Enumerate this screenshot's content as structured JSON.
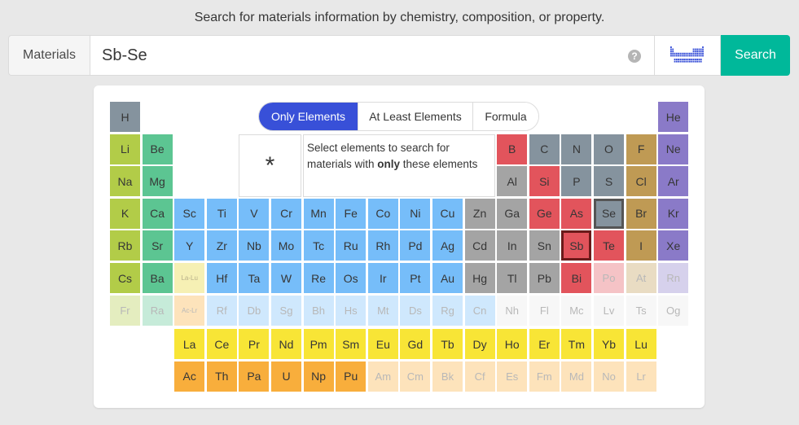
{
  "header": {
    "tagline": "Search for materials information by chemistry, composition, or property."
  },
  "search": {
    "label": "Materials",
    "value": "Sb-Se",
    "help_icon": "question-circle-icon",
    "toggle_icon": "periodic-table-icon",
    "button_label": "Search",
    "button_color": "#00b89a"
  },
  "modes": [
    "Only Elements",
    "At Least Elements",
    "Formula"
  ],
  "active_mode": "Only Elements",
  "wildcard": "*",
  "hint": {
    "before": "Select elements to search for materials with ",
    "bold": "only",
    "after": " these elements"
  },
  "selected_elements": [
    "Sb",
    "Se"
  ],
  "colors": {
    "alkali": "#b2cc48",
    "alkaline": "#5cc592",
    "transition": "#76bdf9",
    "post_transition": "#a4a4a4",
    "metalloid": "#e2545c",
    "nonmetal": "#85939e",
    "halogen": "#bf9a54",
    "noble": "#8a7ac8",
    "lanthanide": "#f8e536",
    "actinide": "#f8ae3c",
    "placeholder_lanthanide": "#f6f0b4"
  },
  "elements": [
    {
      "s": "H",
      "r": 1,
      "c": 1,
      "g": "nonmetal"
    },
    {
      "s": "He",
      "r": 1,
      "c": 18,
      "g": "noble"
    },
    {
      "s": "Li",
      "r": 2,
      "c": 1,
      "g": "alkali"
    },
    {
      "s": "Be",
      "r": 2,
      "c": 2,
      "g": "alkaline"
    },
    {
      "s": "B",
      "r": 2,
      "c": 13,
      "g": "metalloid"
    },
    {
      "s": "C",
      "r": 2,
      "c": 14,
      "g": "nonmetal"
    },
    {
      "s": "N",
      "r": 2,
      "c": 15,
      "g": "nonmetal"
    },
    {
      "s": "O",
      "r": 2,
      "c": 16,
      "g": "nonmetal"
    },
    {
      "s": "F",
      "r": 2,
      "c": 17,
      "g": "halogen"
    },
    {
      "s": "Ne",
      "r": 2,
      "c": 18,
      "g": "noble"
    },
    {
      "s": "Na",
      "r": 3,
      "c": 1,
      "g": "alkali"
    },
    {
      "s": "Mg",
      "r": 3,
      "c": 2,
      "g": "alkaline"
    },
    {
      "s": "Al",
      "r": 3,
      "c": 13,
      "g": "post_transition"
    },
    {
      "s": "Si",
      "r": 3,
      "c": 14,
      "g": "metalloid"
    },
    {
      "s": "P",
      "r": 3,
      "c": 15,
      "g": "nonmetal"
    },
    {
      "s": "S",
      "r": 3,
      "c": 16,
      "g": "nonmetal"
    },
    {
      "s": "Cl",
      "r": 3,
      "c": 17,
      "g": "halogen"
    },
    {
      "s": "Ar",
      "r": 3,
      "c": 18,
      "g": "noble"
    },
    {
      "s": "K",
      "r": 4,
      "c": 1,
      "g": "alkali"
    },
    {
      "s": "Ca",
      "r": 4,
      "c": 2,
      "g": "alkaline"
    },
    {
      "s": "Sc",
      "r": 4,
      "c": 3,
      "g": "transition"
    },
    {
      "s": "Ti",
      "r": 4,
      "c": 4,
      "g": "transition"
    },
    {
      "s": "V",
      "r": 4,
      "c": 5,
      "g": "transition"
    },
    {
      "s": "Cr",
      "r": 4,
      "c": 6,
      "g": "transition"
    },
    {
      "s": "Mn",
      "r": 4,
      "c": 7,
      "g": "transition"
    },
    {
      "s": "Fe",
      "r": 4,
      "c": 8,
      "g": "transition"
    },
    {
      "s": "Co",
      "r": 4,
      "c": 9,
      "g": "transition"
    },
    {
      "s": "Ni",
      "r": 4,
      "c": 10,
      "g": "transition"
    },
    {
      "s": "Cu",
      "r": 4,
      "c": 11,
      "g": "transition"
    },
    {
      "s": "Zn",
      "r": 4,
      "c": 12,
      "g": "post_transition"
    },
    {
      "s": "Ga",
      "r": 4,
      "c": 13,
      "g": "post_transition"
    },
    {
      "s": "Ge",
      "r": 4,
      "c": 14,
      "g": "metalloid"
    },
    {
      "s": "As",
      "r": 4,
      "c": 15,
      "g": "metalloid"
    },
    {
      "s": "Se",
      "r": 4,
      "c": 16,
      "g": "nonmetal"
    },
    {
      "s": "Br",
      "r": 4,
      "c": 17,
      "g": "halogen"
    },
    {
      "s": "Kr",
      "r": 4,
      "c": 18,
      "g": "noble"
    },
    {
      "s": "Rb",
      "r": 5,
      "c": 1,
      "g": "alkali"
    },
    {
      "s": "Sr",
      "r": 5,
      "c": 2,
      "g": "alkaline"
    },
    {
      "s": "Y",
      "r": 5,
      "c": 3,
      "g": "transition"
    },
    {
      "s": "Zr",
      "r": 5,
      "c": 4,
      "g": "transition"
    },
    {
      "s": "Nb",
      "r": 5,
      "c": 5,
      "g": "transition"
    },
    {
      "s": "Mo",
      "r": 5,
      "c": 6,
      "g": "transition"
    },
    {
      "s": "Tc",
      "r": 5,
      "c": 7,
      "g": "transition"
    },
    {
      "s": "Ru",
      "r": 5,
      "c": 8,
      "g": "transition"
    },
    {
      "s": "Rh",
      "r": 5,
      "c": 9,
      "g": "transition"
    },
    {
      "s": "Pd",
      "r": 5,
      "c": 10,
      "g": "transition"
    },
    {
      "s": "Ag",
      "r": 5,
      "c": 11,
      "g": "transition"
    },
    {
      "s": "Cd",
      "r": 5,
      "c": 12,
      "g": "post_transition"
    },
    {
      "s": "In",
      "r": 5,
      "c": 13,
      "g": "post_transition"
    },
    {
      "s": "Sn",
      "r": 5,
      "c": 14,
      "g": "post_transition"
    },
    {
      "s": "Sb",
      "r": 5,
      "c": 15,
      "g": "metalloid"
    },
    {
      "s": "Te",
      "r": 5,
      "c": 16,
      "g": "metalloid"
    },
    {
      "s": "I",
      "r": 5,
      "c": 17,
      "g": "halogen"
    },
    {
      "s": "Xe",
      "r": 5,
      "c": 18,
      "g": "noble"
    },
    {
      "s": "Cs",
      "r": 6,
      "c": 1,
      "g": "alkali"
    },
    {
      "s": "Ba",
      "r": 6,
      "c": 2,
      "g": "alkaline"
    },
    {
      "s": "La-Lu",
      "r": 6,
      "c": 3,
      "g": "placeholder_lanthanide",
      "tiny": true
    },
    {
      "s": "Hf",
      "r": 6,
      "c": 4,
      "g": "transition"
    },
    {
      "s": "Ta",
      "r": 6,
      "c": 5,
      "g": "transition"
    },
    {
      "s": "W",
      "r": 6,
      "c": 6,
      "g": "transition"
    },
    {
      "s": "Re",
      "r": 6,
      "c": 7,
      "g": "transition"
    },
    {
      "s": "Os",
      "r": 6,
      "c": 8,
      "g": "transition"
    },
    {
      "s": "Ir",
      "r": 6,
      "c": 9,
      "g": "transition"
    },
    {
      "s": "Pt",
      "r": 6,
      "c": 10,
      "g": "transition"
    },
    {
      "s": "Au",
      "r": 6,
      "c": 11,
      "g": "transition"
    },
    {
      "s": "Hg",
      "r": 6,
      "c": 12,
      "g": "post_transition"
    },
    {
      "s": "Tl",
      "r": 6,
      "c": 13,
      "g": "post_transition"
    },
    {
      "s": "Pb",
      "r": 6,
      "c": 14,
      "g": "post_transition"
    },
    {
      "s": "Bi",
      "r": 6,
      "c": 15,
      "g": "metalloid"
    },
    {
      "s": "Po",
      "r": 6,
      "c": 16,
      "g": "metalloid",
      "faded": true
    },
    {
      "s": "At",
      "r": 6,
      "c": 17,
      "g": "halogen",
      "faded": true
    },
    {
      "s": "Rn",
      "r": 6,
      "c": 18,
      "g": "noble",
      "faded": true
    },
    {
      "s": "Fr",
      "r": 7,
      "c": 1,
      "g": "alkali",
      "faded": true
    },
    {
      "s": "Ra",
      "r": 7,
      "c": 2,
      "g": "alkaline",
      "faded": true
    },
    {
      "s": "Ac-Lr",
      "r": 7,
      "c": 3,
      "g": "actinide",
      "faded": true,
      "tiny": true
    },
    {
      "s": "Rf",
      "r": 7,
      "c": 4,
      "g": "transition",
      "faded": true
    },
    {
      "s": "Db",
      "r": 7,
      "c": 5,
      "g": "transition",
      "faded": true
    },
    {
      "s": "Sg",
      "r": 7,
      "c": 6,
      "g": "transition",
      "faded": true
    },
    {
      "s": "Bh",
      "r": 7,
      "c": 7,
      "g": "transition",
      "faded": true
    },
    {
      "s": "Hs",
      "r": 7,
      "c": 8,
      "g": "transition",
      "faded": true
    },
    {
      "s": "Mt",
      "r": 7,
      "c": 9,
      "g": "transition",
      "faded": true
    },
    {
      "s": "Ds",
      "r": 7,
      "c": 10,
      "g": "transition",
      "faded": true
    },
    {
      "s": "Rg",
      "r": 7,
      "c": 11,
      "g": "transition",
      "faded": true
    },
    {
      "s": "Cn",
      "r": 7,
      "c": 12,
      "g": "transition",
      "faded": true
    },
    {
      "s": "Nh",
      "r": 7,
      "c": 13,
      "g": "none",
      "faded": true
    },
    {
      "s": "Fl",
      "r": 7,
      "c": 14,
      "g": "none",
      "faded": true
    },
    {
      "s": "Mc",
      "r": 7,
      "c": 15,
      "g": "none",
      "faded": true
    },
    {
      "s": "Lv",
      "r": 7,
      "c": 16,
      "g": "none",
      "faded": true
    },
    {
      "s": "Ts",
      "r": 7,
      "c": 17,
      "g": "none",
      "faded": true
    },
    {
      "s": "Og",
      "r": 7,
      "c": 18,
      "g": "none",
      "faded": true
    },
    {
      "s": "La",
      "r": 8,
      "c": 3,
      "g": "lanthanide"
    },
    {
      "s": "Ce",
      "r": 8,
      "c": 4,
      "g": "lanthanide"
    },
    {
      "s": "Pr",
      "r": 8,
      "c": 5,
      "g": "lanthanide"
    },
    {
      "s": "Nd",
      "r": 8,
      "c": 6,
      "g": "lanthanide"
    },
    {
      "s": "Pm",
      "r": 8,
      "c": 7,
      "g": "lanthanide"
    },
    {
      "s": "Sm",
      "r": 8,
      "c": 8,
      "g": "lanthanide"
    },
    {
      "s": "Eu",
      "r": 8,
      "c": 9,
      "g": "lanthanide"
    },
    {
      "s": "Gd",
      "r": 8,
      "c": 10,
      "g": "lanthanide"
    },
    {
      "s": "Tb",
      "r": 8,
      "c": 11,
      "g": "lanthanide"
    },
    {
      "s": "Dy",
      "r": 8,
      "c": 12,
      "g": "lanthanide"
    },
    {
      "s": "Ho",
      "r": 8,
      "c": 13,
      "g": "lanthanide"
    },
    {
      "s": "Er",
      "r": 8,
      "c": 14,
      "g": "lanthanide"
    },
    {
      "s": "Tm",
      "r": 8,
      "c": 15,
      "g": "lanthanide"
    },
    {
      "s": "Yb",
      "r": 8,
      "c": 16,
      "g": "lanthanide"
    },
    {
      "s": "Lu",
      "r": 8,
      "c": 17,
      "g": "lanthanide"
    },
    {
      "s": "Ac",
      "r": 9,
      "c": 3,
      "g": "actinide"
    },
    {
      "s": "Th",
      "r": 9,
      "c": 4,
      "g": "actinide"
    },
    {
      "s": "Pa",
      "r": 9,
      "c": 5,
      "g": "actinide"
    },
    {
      "s": "U",
      "r": 9,
      "c": 6,
      "g": "actinide"
    },
    {
      "s": "Np",
      "r": 9,
      "c": 7,
      "g": "actinide"
    },
    {
      "s": "Pu",
      "r": 9,
      "c": 8,
      "g": "actinide"
    },
    {
      "s": "Am",
      "r": 9,
      "c": 9,
      "g": "actinide",
      "faded": true
    },
    {
      "s": "Cm",
      "r": 9,
      "c": 10,
      "g": "actinide",
      "faded": true
    },
    {
      "s": "Bk",
      "r": 9,
      "c": 11,
      "g": "actinide",
      "faded": true
    },
    {
      "s": "Cf",
      "r": 9,
      "c": 12,
      "g": "actinide",
      "faded": true
    },
    {
      "s": "Es",
      "r": 9,
      "c": 13,
      "g": "actinide",
      "faded": true
    },
    {
      "s": "Fm",
      "r": 9,
      "c": 14,
      "g": "actinide",
      "faded": true
    },
    {
      "s": "Md",
      "r": 9,
      "c": 15,
      "g": "actinide",
      "faded": true
    },
    {
      "s": "No",
      "r": 9,
      "c": 16,
      "g": "actinide",
      "faded": true
    },
    {
      "s": "Lr",
      "r": 9,
      "c": 17,
      "g": "actinide",
      "faded": true
    }
  ]
}
